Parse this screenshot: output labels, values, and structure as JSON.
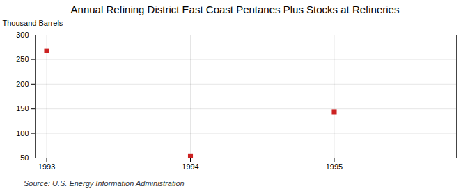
{
  "chart_data": {
    "type": "scatter",
    "title": "Annual Refining District East Coast Pentanes Plus Stocks at Refineries",
    "ylabel": "Thousand Barrels",
    "source": "Source: U.S. Energy Information Administration",
    "x": [
      1993,
      1994,
      1995
    ],
    "values": [
      268,
      53,
      144
    ],
    "color": "#cc2222",
    "marker": "square",
    "xlim": [
      1992.92,
      1995.85
    ],
    "xticks": [
      1993,
      1994,
      1995
    ],
    "ylim": [
      50,
      300
    ],
    "yticks": [
      50,
      100,
      150,
      200,
      250,
      300
    ],
    "grid": true
  }
}
